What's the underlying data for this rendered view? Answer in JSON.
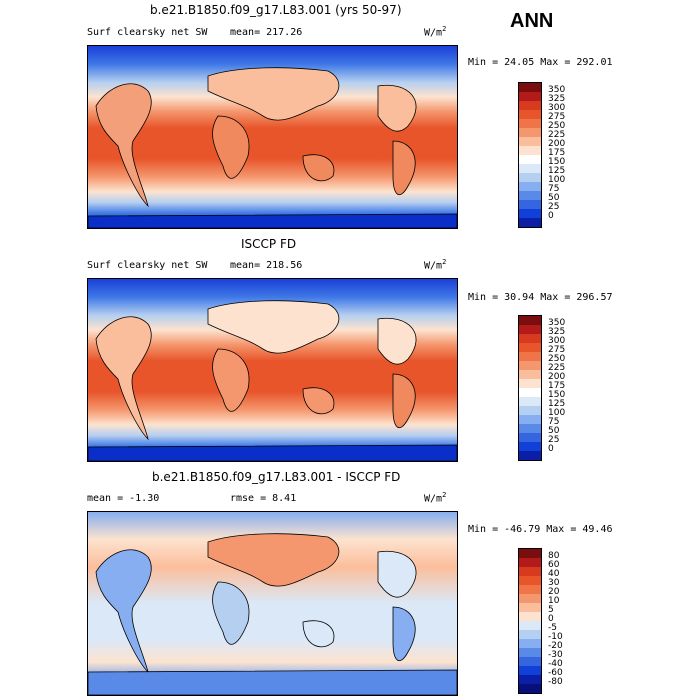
{
  "season": "ANN",
  "panels": [
    {
      "title": "b.e21.B1850.f09_g17.L83.001 (yrs 50-97)",
      "variable": "Surf clearsky net SW",
      "mean_label": "mean= 217.26",
      "units_base": "W/m",
      "units_exp": "2",
      "minmax": "Min =  24.05 Max = 292.01",
      "colorbar_ticks": [
        "350",
        "325",
        "300",
        "275",
        "250",
        "225",
        "200",
        "175",
        "150",
        "125",
        "100",
        "75",
        "50",
        "25",
        "0"
      ],
      "colorbar_colors": [
        "#7a0d0d",
        "#b31a1a",
        "#d83a1f",
        "#e8552b",
        "#ef7548",
        "#f5976e",
        "#fbbe9c",
        "#fde3cf",
        "#ffffff",
        "#dbe8f7",
        "#b5cff0",
        "#86aef0",
        "#5a8ae8",
        "#3566e0",
        "#1040d8",
        "#0a1fa6"
      ]
    },
    {
      "title": "ISCCP FD",
      "variable": "Surf clearsky net SW",
      "mean_label": "mean= 218.56",
      "units_base": "W/m",
      "units_exp": "2",
      "minmax": "Min =  30.94 Max = 296.57",
      "colorbar_ticks": [
        "350",
        "325",
        "300",
        "275",
        "250",
        "225",
        "200",
        "175",
        "150",
        "125",
        "100",
        "75",
        "50",
        "25",
        "0"
      ],
      "colorbar_colors": [
        "#7a0d0d",
        "#b31a1a",
        "#d83a1f",
        "#e8552b",
        "#ef7548",
        "#f5976e",
        "#fbbe9c",
        "#fde3cf",
        "#ffffff",
        "#dbe8f7",
        "#b5cff0",
        "#86aef0",
        "#5a8ae8",
        "#3566e0",
        "#1040d8",
        "#0a1fa6"
      ]
    },
    {
      "title": "b.e21.B1850.f09_g17.L83.001 - ISCCP FD",
      "mean_label": "mean =  -1.30",
      "rmse_label": "rmse =   8.41",
      "units_base": "W/m",
      "units_exp": "2",
      "minmax": "Min = -46.79 Max =  49.46",
      "colorbar_ticks": [
        "80",
        "60",
        "40",
        "30",
        "20",
        "10",
        "5",
        "0",
        "-5",
        "-10",
        "-20",
        "-30",
        "-40",
        "-60",
        "-80"
      ],
      "colorbar_colors": [
        "#7a0d0d",
        "#b31a1a",
        "#d83a1f",
        "#e8552b",
        "#ef7548",
        "#f5976e",
        "#fbbe9c",
        "#fde3cf",
        "#dbe8f7",
        "#b5cff0",
        "#86aef0",
        "#5a8ae8",
        "#3566e0",
        "#1040d8",
        "#0a1fa6",
        "#060f7a"
      ]
    }
  ]
}
